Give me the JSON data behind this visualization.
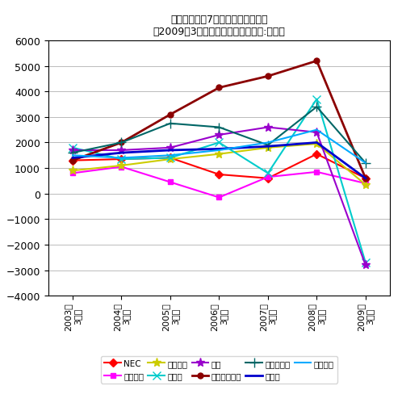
{
  "title_line1": "電機大手直近7年間の営業損益推移",
  "title_line2": "（2009年3月期は直近予想）（単位:億円）",
  "x_labels": [
    "2003年\n3月期",
    "2004年\n3月期",
    "2005年\n3月期",
    "2006年\n3月期",
    "2007年\n3月期",
    "2008年\n3月期",
    "2009年\n3月期"
  ],
  "ylim": [
    -4000,
    6000
  ],
  "yticks": [
    -4000,
    -3000,
    -2000,
    -1000,
    0,
    1000,
    2000,
    3000,
    4000,
    5000,
    6000
  ],
  "series": [
    {
      "name": "NEC",
      "color": "#FF0000",
      "marker": "D",
      "markersize": 5,
      "linewidth": 1.5,
      "values": [
        1300,
        1350,
        1400,
        750,
        600,
        1550,
        600
      ]
    },
    {
      "name": "三洋電機",
      "color": "#FF00FF",
      "marker": "s",
      "markersize": 5,
      "linewidth": 1.5,
      "values": [
        800,
        1050,
        450,
        -150,
        650,
        850,
        400
      ]
    },
    {
      "name": "シャープ",
      "color": "#CCCC00",
      "marker": "*",
      "markersize": 8,
      "linewidth": 1.5,
      "values": [
        900,
        1100,
        1350,
        1550,
        1800,
        1950,
        350
      ]
    },
    {
      "name": "ソニー",
      "color": "#00CCCC",
      "marker": "x",
      "markersize": 7,
      "linewidth": 1.5,
      "values": [
        1800,
        1350,
        1400,
        2000,
        800,
        3700,
        -2700
      ]
    },
    {
      "name": "東芝",
      "color": "#9900CC",
      "marker": "*",
      "markersize": 8,
      "linewidth": 1.5,
      "values": [
        1700,
        1700,
        1800,
        2300,
        2600,
        2400,
        -2800
      ]
    },
    {
      "name": "パナソニック",
      "color": "#8B0000",
      "marker": "o",
      "markersize": 5,
      "linewidth": 2.0,
      "values": [
        1300,
        2000,
        3100,
        4150,
        4600,
        5200,
        600
      ]
    },
    {
      "name": "日立製作所",
      "color": "#006666",
      "marker": "+",
      "markersize": 8,
      "linewidth": 1.5,
      "values": [
        1600,
        2000,
        2750,
        2600,
        1900,
        3400,
        1200
      ]
    },
    {
      "name": "富士通",
      "color": "#0000CC",
      "marker": "None",
      "markersize": 5,
      "linewidth": 2.0,
      "values": [
        1400,
        1600,
        1700,
        1750,
        1850,
        2000,
        600
      ]
    },
    {
      "name": "三菱電機",
      "color": "#00AAFF",
      "marker": "None",
      "markersize": 5,
      "linewidth": 1.5,
      "values": [
        1500,
        1400,
        1500,
        1700,
        2000,
        2500,
        1200
      ]
    }
  ],
  "background_color": "#FFFFFF",
  "grid_color": "#BBBBBB"
}
